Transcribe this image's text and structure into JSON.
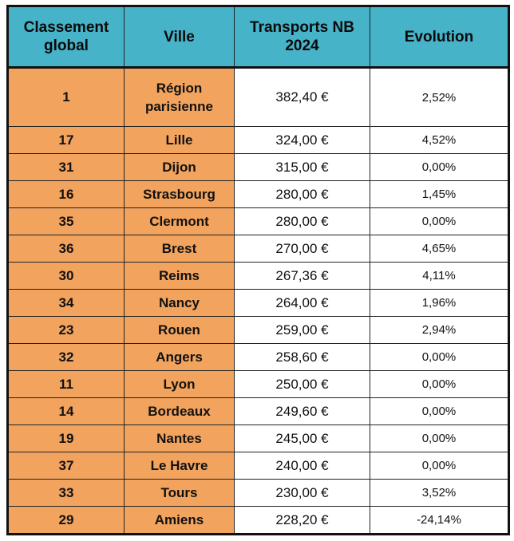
{
  "table": {
    "headers": {
      "rank": [
        "Classement",
        "global"
      ],
      "city": "Ville",
      "transport": [
        "Transports NB",
        "2024"
      ],
      "evolution": "Evolution"
    },
    "rows": [
      {
        "rank": "1",
        "city": [
          "Région",
          "parisienne"
        ],
        "amount": "382,40 €",
        "evolution": "2,52%"
      },
      {
        "rank": "17",
        "city": "Lille",
        "amount": "324,00 €",
        "evolution": "4,52%"
      },
      {
        "rank": "31",
        "city": "Dijon",
        "amount": "315,00 €",
        "evolution": "0,00%"
      },
      {
        "rank": "16",
        "city": "Strasbourg",
        "amount": "280,00 €",
        "evolution": "1,45%"
      },
      {
        "rank": "35",
        "city": "Clermont",
        "amount": "280,00 €",
        "evolution": "0,00%"
      },
      {
        "rank": "36",
        "city": "Brest",
        "amount": "270,00 €",
        "evolution": "4,65%"
      },
      {
        "rank": "30",
        "city": "Reims",
        "amount": "267,36 €",
        "evolution": "4,11%"
      },
      {
        "rank": "34",
        "city": "Nancy",
        "amount": "264,00 €",
        "evolution": "1,96%"
      },
      {
        "rank": "23",
        "city": "Rouen",
        "amount": "259,00 €",
        "evolution": "2,94%"
      },
      {
        "rank": "32",
        "city": "Angers",
        "amount": "258,60 €",
        "evolution": "0,00%"
      },
      {
        "rank": "11",
        "city": "Lyon",
        "amount": "250,00 €",
        "evolution": "0,00%"
      },
      {
        "rank": "14",
        "city": "Bordeaux",
        "amount": "249,60 €",
        "evolution": "0,00%"
      },
      {
        "rank": "19",
        "city": "Nantes",
        "amount": "245,00 €",
        "evolution": "0,00%"
      },
      {
        "rank": "37",
        "city": "Le Havre",
        "amount": "240,00 €",
        "evolution": "0,00%"
      },
      {
        "rank": "33",
        "city": "Tours",
        "amount": "230,00 €",
        "evolution": "3,52%"
      },
      {
        "rank": "29",
        "city": "Amiens",
        "amount": "228,20 €",
        "evolution": "-24,14%"
      }
    ]
  },
  "colors": {
    "header_bg": "#46b3c9",
    "highlight_bg": "#f2a35e",
    "cell_bg": "#ffffff",
    "border": "#111111"
  }
}
